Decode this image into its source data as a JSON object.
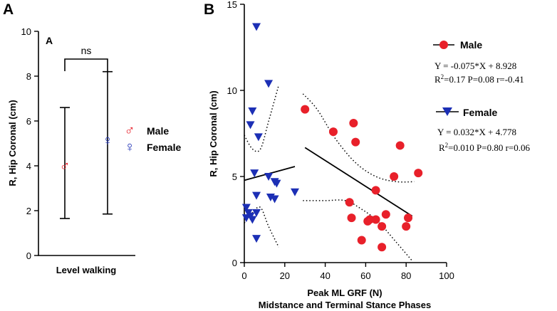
{
  "colors": {
    "male": "#e8202a",
    "female": "#1c2fb5",
    "axis": "#000000"
  },
  "chart_data": [
    {
      "type": "scatter",
      "panel": "A",
      "panel_label": "A",
      "inner_label": "A",
      "ylabel": "R, Hip Coronal (cm)",
      "xlabel": "Level walking",
      "ylim": [
        0,
        10
      ],
      "yticks": [
        0,
        2,
        4,
        6,
        8,
        10
      ],
      "significance_label": "ns",
      "series": [
        {
          "name": "Male",
          "symbol": "♂",
          "icon": "male-symbol-icon",
          "mean": 4.0,
          "err_low": 1.65,
          "err_high": 6.6
        },
        {
          "name": "Female",
          "symbol": "♀",
          "icon": "female-symbol-icon",
          "mean": 5.15,
          "err_low": 1.85,
          "err_high": 8.2
        }
      ],
      "legend": [
        {
          "symbol": "♂",
          "label": "Male"
        },
        {
          "symbol": "♀",
          "label": "Female"
        }
      ]
    },
    {
      "type": "scatter",
      "panel": "B",
      "panel_label": "B",
      "ylabel": "R, Hip Coronal (cm)",
      "xlabel": "Peak ML GRF (N)",
      "xlabel2": "Midstance and Terminal Stance Phases",
      "xlim": [
        0,
        100
      ],
      "ylim": [
        0,
        15
      ],
      "xticks": [
        0,
        20,
        40,
        60,
        80,
        100
      ],
      "yticks": [
        0,
        5,
        10,
        15
      ],
      "series": [
        {
          "name": "Male",
          "marker": "circle",
          "points": [
            [
              30,
              8.9
            ],
            [
              44,
              7.6
            ],
            [
              54,
              8.1
            ],
            [
              55,
              7.0
            ],
            [
              65,
              4.2
            ],
            [
              74,
              5.0
            ],
            [
              77,
              6.8
            ],
            [
              86,
              5.2
            ],
            [
              52,
              3.5
            ],
            [
              53,
              2.6
            ],
            [
              58,
              1.3
            ],
            [
              61,
              2.4
            ],
            [
              62,
              2.5
            ],
            [
              65,
              2.5
            ],
            [
              68,
              2.1
            ],
            [
              70,
              2.8
            ],
            [
              68,
              0.9
            ],
            [
              80,
              2.1
            ],
            [
              81,
              2.6
            ]
          ],
          "regression": {
            "x_range": [
              30,
              83
            ],
            "slope": -0.075,
            "intercept": 8.928,
            "band_upper": [
              [
                29,
                9.8
              ],
              [
                36,
                8.9
              ],
              [
                45,
                7.2
              ],
              [
                55,
                5.8
              ],
              [
                65,
                5.0
              ],
              [
                75,
                4.7
              ],
              [
                84,
                4.7
              ]
            ],
            "band_lower": [
              [
                29,
                3.6
              ],
              [
                40,
                3.6
              ],
              [
                50,
                3.6
              ],
              [
                58,
                3.1
              ],
              [
                66,
                2.4
              ],
              [
                75,
                1.2
              ],
              [
                83,
                0.1
              ]
            ]
          },
          "equation": "Y = -0.075*X + 8.928",
          "stats_prefix": "R",
          "stats_sup": "2",
          "stats_suffix": "=0.17 P=0.08 r=-0.41"
        },
        {
          "name": "Female",
          "marker": "triangle-down",
          "points": [
            [
              6,
              13.7
            ],
            [
              12,
              10.4
            ],
            [
              4,
              8.8
            ],
            [
              3,
              8.0
            ],
            [
              7,
              7.3
            ],
            [
              12,
              5.0
            ],
            [
              5,
              5.2
            ],
            [
              15,
              4.7
            ],
            [
              16,
              4.6
            ],
            [
              25,
              4.1
            ],
            [
              6,
              3.9
            ],
            [
              13,
              3.8
            ],
            [
              15,
              3.7
            ],
            [
              1,
              3.2
            ],
            [
              2,
              2.9
            ],
            [
              6,
              2.9
            ],
            [
              3,
              2.7
            ],
            [
              4,
              2.5
            ],
            [
              1,
              2.6
            ],
            [
              6,
              1.4
            ]
          ],
          "regression": {
            "x_range": [
              0,
              25
            ],
            "slope": 0.032,
            "intercept": 4.778,
            "band_upper": [
              [
                0,
                7.4
              ],
              [
                4,
                6.6
              ],
              [
                8,
                6.6
              ],
              [
                12,
                8.2
              ],
              [
                17,
                10.3
              ]
            ],
            "band_lower": [
              [
                0,
                2.3
              ],
              [
                4,
                2.9
              ],
              [
                8,
                3.2
              ],
              [
                12,
                2.1
              ],
              [
                17,
                0.9
              ]
            ]
          },
          "equation": "Y = 0.032*X + 4.778",
          "stats_prefix": "R",
          "stats_sup": "2",
          "stats_suffix": "=0.010 P=0.80 r=0.06"
        }
      ]
    }
  ]
}
